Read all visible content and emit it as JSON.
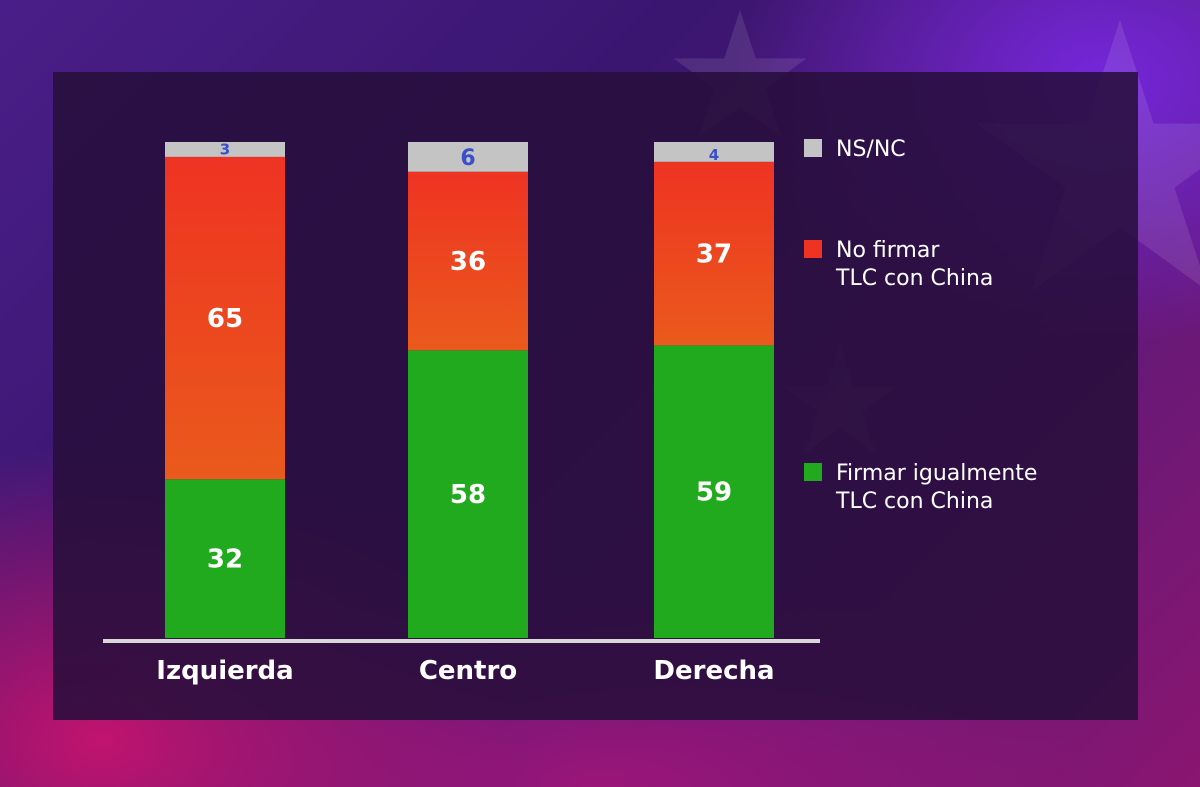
{
  "colors": {
    "ns_nc": "#c4c4c4",
    "no_firmar": "#ee3322",
    "firmar": "#22aa1e",
    "small_label": "#3b4fc8",
    "axis": "#d8d8d8"
  },
  "chart_data": {
    "type": "bar",
    "stacked": true,
    "title": "",
    "xlabel": "",
    "ylabel": "",
    "categories": [
      "Izquierda",
      "Centro",
      "Derecha"
    ],
    "series": [
      {
        "name": "Firmar igualmente TLC con China",
        "color": "#22aa1e",
        "values": [
          32,
          58,
          59
        ]
      },
      {
        "name": "No firmar TLC con China",
        "color": "#ee3322",
        "values": [
          65,
          36,
          37
        ]
      },
      {
        "name": "NS/NC",
        "color": "#c4c4c4",
        "values": [
          3,
          6,
          4
        ]
      }
    ],
    "legend": [
      {
        "lines": [
          "NS/NC"
        ],
        "color": "#c4c4c4"
      },
      {
        "lines": [
          "No firmar",
          "TLC con China"
        ],
        "color": "#ee3322"
      },
      {
        "lines": [
          "Firmar igualmente",
          "TLC con China"
        ],
        "color": "#22aa1e"
      }
    ],
    "legend_position": "right",
    "grid": false,
    "ylim": [
      0,
      100
    ]
  }
}
